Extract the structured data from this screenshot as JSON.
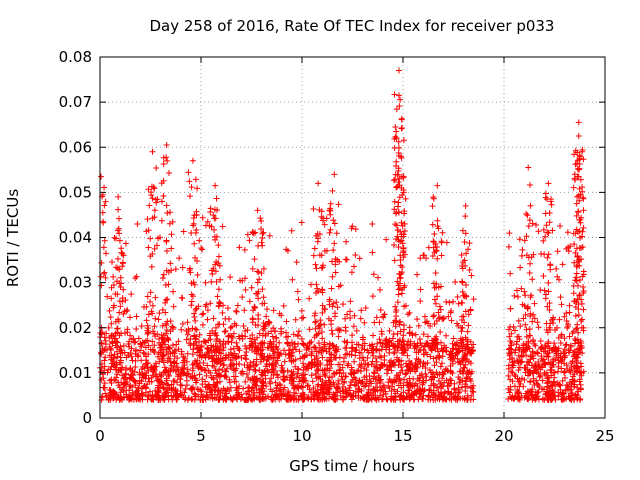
{
  "chart_data": {
    "type": "scatter",
    "title": "Day 258 of 2016, Rate Of TEC Index for receiver p033",
    "xlabel": "GPS time / hours",
    "ylabel": "ROTI / TECUs",
    "xlim": [
      0,
      25
    ],
    "ylim": [
      0,
      0.08
    ],
    "x_ticks": [
      "0",
      "5",
      "10",
      "15",
      "20",
      "25"
    ],
    "y_ticks": [
      "0",
      "0.01",
      "0.02",
      "0.03",
      "0.04",
      "0.05",
      "0.06",
      "0.07",
      "0.08"
    ],
    "grid": true,
    "marker": "+",
    "color": "#ff0000",
    "data_gap_hours": [
      18.5,
      20.2
    ],
    "series": [
      {
        "name": "ROTI",
        "peaks": [
          {
            "x": 0.05,
            "y": 0.0535
          },
          {
            "x": 0.9,
            "y": 0.049
          },
          {
            "x": 2.6,
            "y": 0.059
          },
          {
            "x": 3.3,
            "y": 0.0605
          },
          {
            "x": 4.6,
            "y": 0.057
          },
          {
            "x": 5.7,
            "y": 0.0515
          },
          {
            "x": 7.8,
            "y": 0.046
          },
          {
            "x": 10.8,
            "y": 0.052
          },
          {
            "x": 11.6,
            "y": 0.054
          },
          {
            "x": 14.8,
            "y": 0.077
          },
          {
            "x": 14.8,
            "y": 0.0715
          },
          {
            "x": 14.9,
            "y": 0.058
          },
          {
            "x": 16.7,
            "y": 0.0515
          },
          {
            "x": 18.1,
            "y": 0.047
          },
          {
            "x": 21.2,
            "y": 0.0555
          },
          {
            "x": 22.2,
            "y": 0.052
          },
          {
            "x": 23.7,
            "y": 0.0655
          },
          {
            "x": 23.7,
            "y": 0.0625
          },
          {
            "x": 23.7,
            "y": 0.0535
          }
        ]
      }
    ]
  }
}
